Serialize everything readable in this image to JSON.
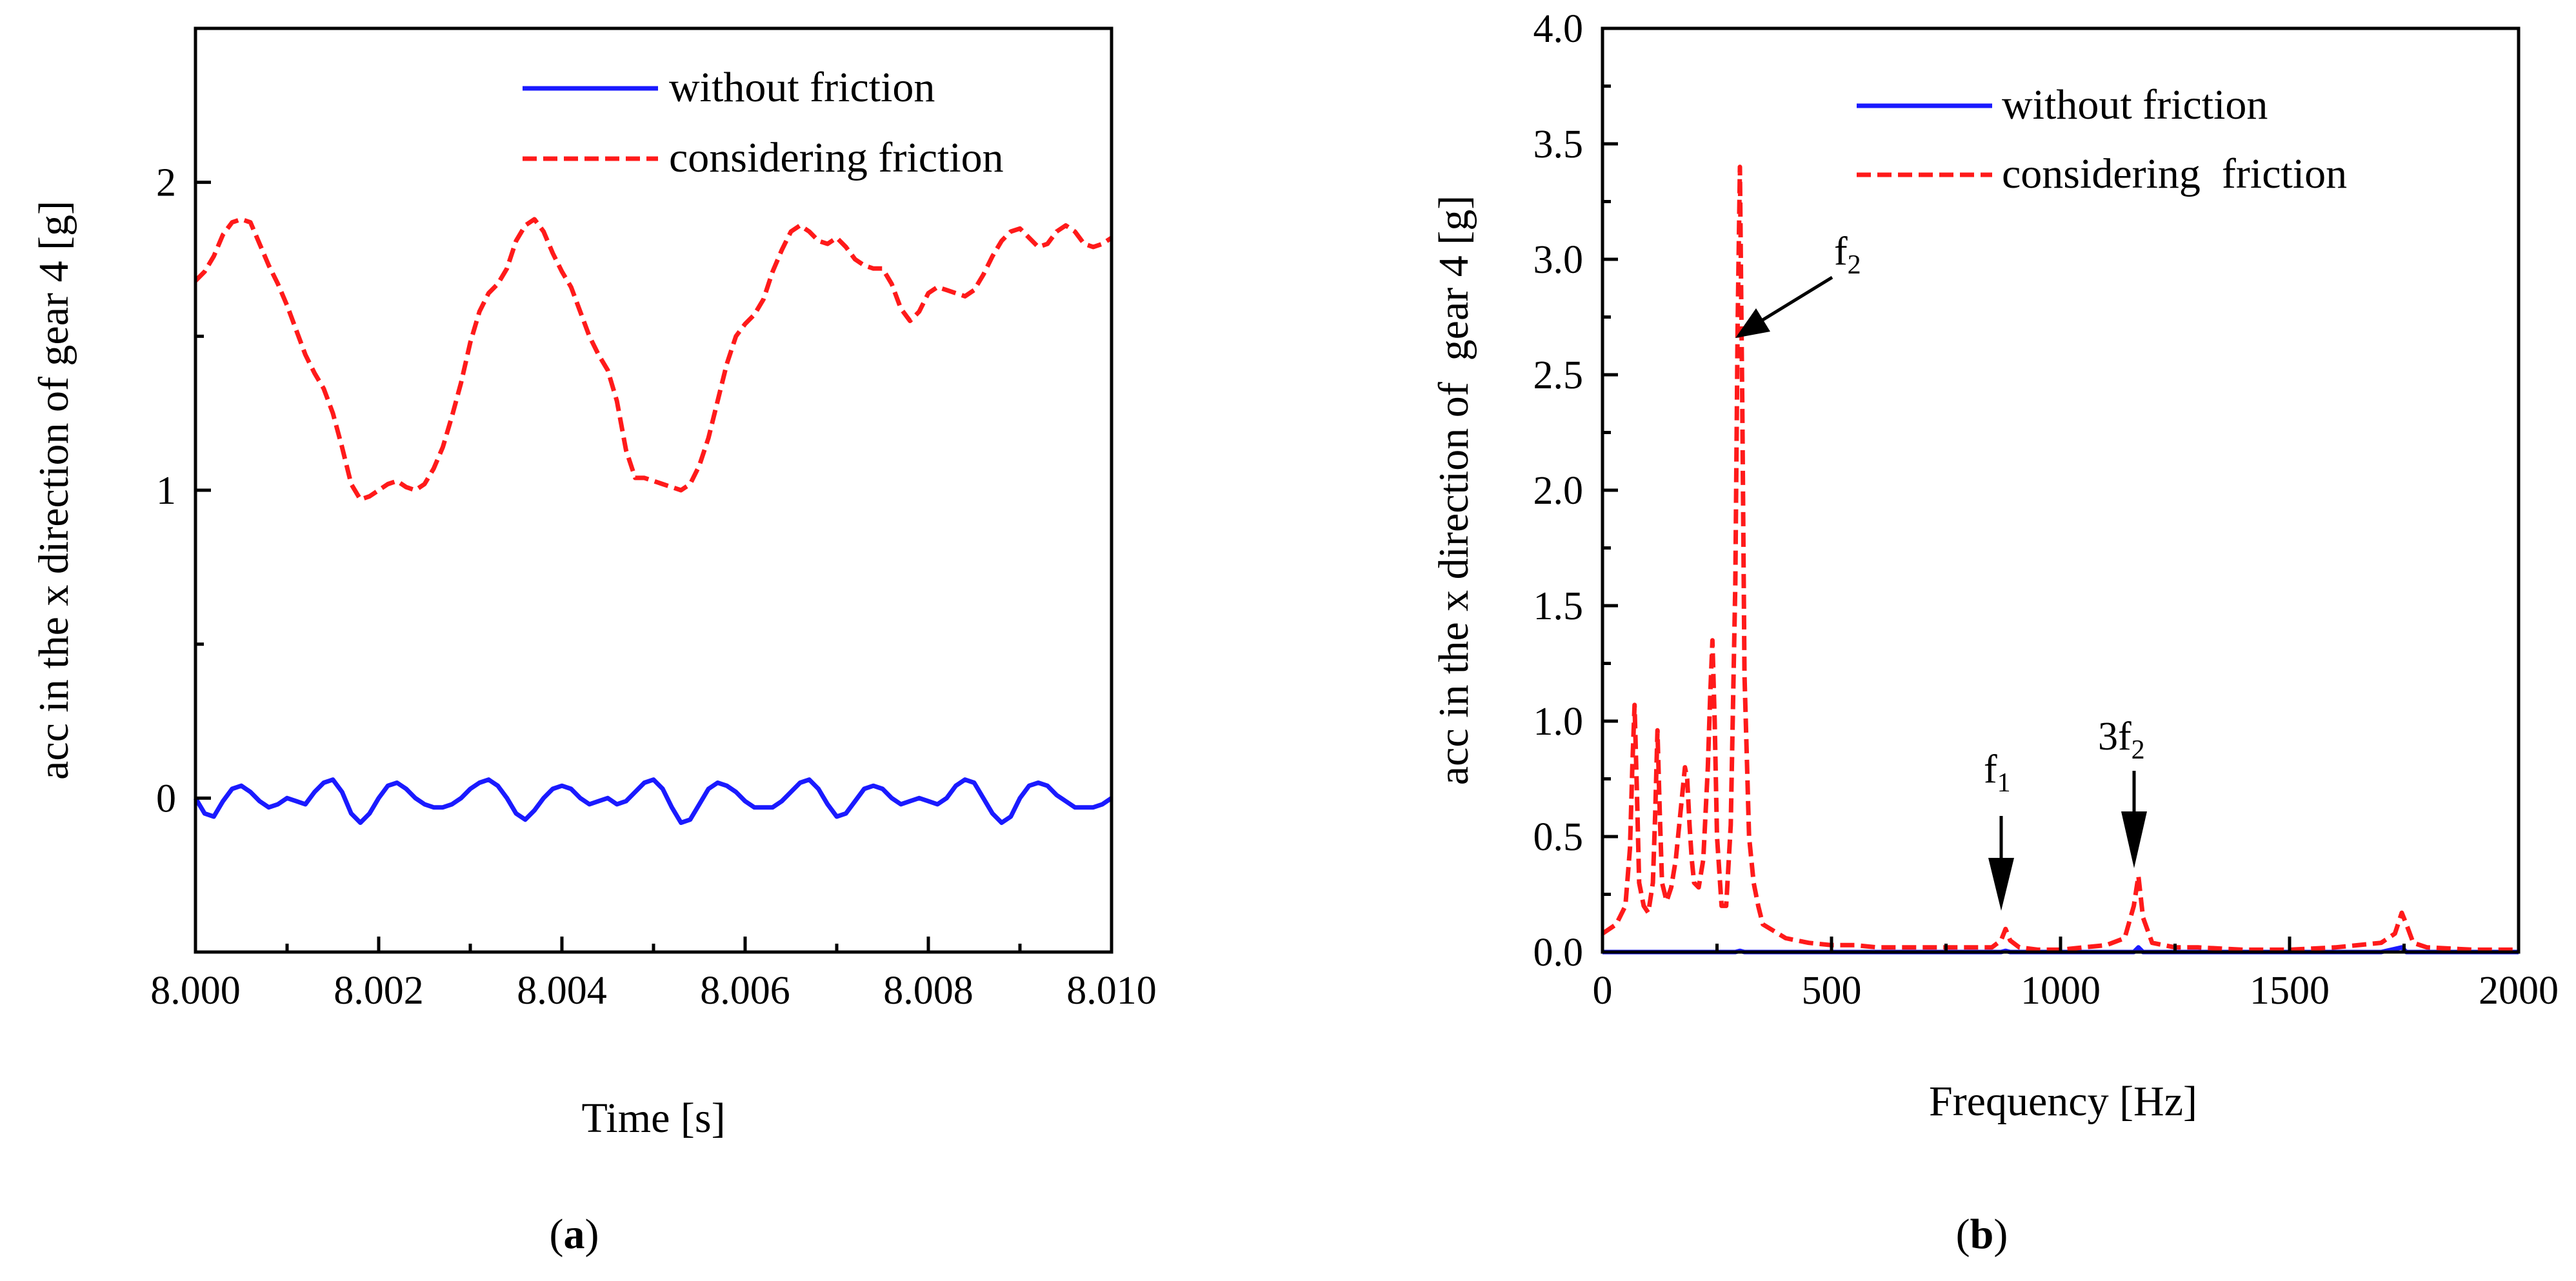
{
  "chart_data": [
    {
      "id": "a",
      "type": "line",
      "panel_label": "a",
      "xlabel": "Time [s]",
      "ylabel": "acc in the x direction of gear 4 [g]",
      "xlim": [
        8.0,
        8.01
      ],
      "ylim": [
        -0.5,
        2.5
      ],
      "xticks": [
        8.0,
        8.002,
        8.004,
        8.006,
        8.008,
        8.01
      ],
      "xtick_labels": [
        "8.000",
        "8.002",
        "8.004",
        "8.006",
        "8.008",
        "8.010"
      ],
      "yticks": [
        0,
        1,
        2
      ],
      "ytick_labels": [
        "0",
        "1",
        "2"
      ],
      "legend_position": "top-right",
      "series": [
        {
          "name": "without friction",
          "color": "#1a1aff",
          "style": "solid",
          "x": [
            8.0,
            8.0001,
            8.0002,
            8.0003,
            8.0004,
            8.0005,
            8.0006,
            8.0007,
            8.0008,
            8.0009,
            8.001,
            8.0011,
            8.0012,
            8.0013,
            8.0014,
            8.0015,
            8.0016,
            8.0017,
            8.0018,
            8.0019,
            8.002,
            8.0021,
            8.0022,
            8.0023,
            8.0024,
            8.0025,
            8.0026,
            8.0027,
            8.0028,
            8.0029,
            8.003,
            8.0031,
            8.0032,
            8.0033,
            8.0034,
            8.0035,
            8.0036,
            8.0037,
            8.0038,
            8.0039,
            8.004,
            8.0041,
            8.0042,
            8.0043,
            8.0044,
            8.0045,
            8.0046,
            8.0047,
            8.0048,
            8.0049,
            8.005,
            8.0051,
            8.0052,
            8.0053,
            8.0054,
            8.0055,
            8.0056,
            8.0057,
            8.0058,
            8.0059,
            8.006,
            8.0061,
            8.0062,
            8.0063,
            8.0064,
            8.0065,
            8.0066,
            8.0067,
            8.0068,
            8.0069,
            8.007,
            8.0071,
            8.0072,
            8.0073,
            8.0074,
            8.0075,
            8.0076,
            8.0077,
            8.0078,
            8.0079,
            8.008,
            8.0081,
            8.0082,
            8.0083,
            8.0084,
            8.0085,
            8.0086,
            8.0087,
            8.0088,
            8.0089,
            8.009,
            8.0091,
            8.0092,
            8.0093,
            8.0094,
            8.0095,
            8.0096,
            8.0097,
            8.0098,
            8.0099,
            8.01
          ],
          "y": [
            0.0,
            -0.05,
            -0.06,
            -0.01,
            0.03,
            0.04,
            0.02,
            -0.01,
            -0.03,
            -0.02,
            0.0,
            -0.01,
            -0.02,
            0.02,
            0.05,
            0.06,
            0.02,
            -0.05,
            -0.08,
            -0.05,
            0.0,
            0.04,
            0.05,
            0.03,
            0.0,
            -0.02,
            -0.03,
            -0.03,
            -0.02,
            0.0,
            0.03,
            0.05,
            0.06,
            0.04,
            0.0,
            -0.05,
            -0.07,
            -0.04,
            0.0,
            0.03,
            0.04,
            0.03,
            0.0,
            -0.02,
            -0.01,
            0.0,
            -0.02,
            -0.01,
            0.02,
            0.05,
            0.06,
            0.03,
            -0.03,
            -0.08,
            -0.07,
            -0.02,
            0.03,
            0.05,
            0.04,
            0.02,
            -0.01,
            -0.03,
            -0.03,
            -0.03,
            -0.01,
            0.02,
            0.05,
            0.06,
            0.03,
            -0.02,
            -0.06,
            -0.05,
            -0.01,
            0.03,
            0.04,
            0.03,
            0.0,
            -0.02,
            -0.01,
            0.0,
            -0.01,
            -0.02,
            0.0,
            0.04,
            0.06,
            0.05,
            0.0,
            -0.05,
            -0.08,
            -0.06,
            0.0,
            0.04,
            0.05,
            0.04,
            0.01,
            -0.01,
            -0.03,
            -0.03,
            -0.03,
            -0.02,
            0.0
          ]
        },
        {
          "name": "considering friction",
          "color": "#ff1a1a",
          "style": "dashed",
          "x": [
            8.0,
            8.0001,
            8.0002,
            8.0003,
            8.0004,
            8.0005,
            8.0006,
            8.0007,
            8.0008,
            8.0009,
            8.001,
            8.0011,
            8.0012,
            8.0013,
            8.0014,
            8.0015,
            8.0016,
            8.0017,
            8.0018,
            8.0019,
            8.002,
            8.0021,
            8.0022,
            8.0023,
            8.0024,
            8.0025,
            8.0026,
            8.0027,
            8.0028,
            8.0029,
            8.003,
            8.0031,
            8.0032,
            8.0033,
            8.0034,
            8.0035,
            8.0036,
            8.0037,
            8.0038,
            8.0039,
            8.004,
            8.0041,
            8.0042,
            8.0043,
            8.0044,
            8.0045,
            8.0046,
            8.0047,
            8.0048,
            8.0049,
            8.005,
            8.0051,
            8.0052,
            8.0053,
            8.0054,
            8.0055,
            8.0056,
            8.0057,
            8.0058,
            8.0059,
            8.006,
            8.0061,
            8.0062,
            8.0063,
            8.0064,
            8.0065,
            8.0066,
            8.0067,
            8.0068,
            8.0069,
            8.007,
            8.0071,
            8.0072,
            8.0073,
            8.0074,
            8.0075,
            8.0076,
            8.0077,
            8.0078,
            8.0079,
            8.008,
            8.0081,
            8.0082,
            8.0083,
            8.0084,
            8.0085,
            8.0086,
            8.0087,
            8.0088,
            8.0089,
            8.009,
            8.0091,
            8.0092,
            8.0093,
            8.0094,
            8.0095,
            8.0096,
            8.0097,
            8.0098,
            8.0099,
            8.01
          ],
          "y": [
            1.68,
            1.71,
            1.76,
            1.83,
            1.87,
            1.88,
            1.87,
            1.8,
            1.73,
            1.67,
            1.6,
            1.52,
            1.44,
            1.38,
            1.33,
            1.25,
            1.14,
            1.02,
            0.97,
            0.98,
            1.0,
            1.02,
            1.03,
            1.01,
            1.0,
            1.02,
            1.07,
            1.14,
            1.24,
            1.35,
            1.48,
            1.58,
            1.64,
            1.67,
            1.72,
            1.81,
            1.86,
            1.88,
            1.84,
            1.77,
            1.71,
            1.66,
            1.58,
            1.5,
            1.44,
            1.39,
            1.29,
            1.13,
            1.04,
            1.04,
            1.03,
            1.02,
            1.01,
            1.0,
            1.02,
            1.08,
            1.17,
            1.29,
            1.41,
            1.5,
            1.54,
            1.57,
            1.62,
            1.71,
            1.78,
            1.84,
            1.86,
            1.84,
            1.81,
            1.8,
            1.82,
            1.79,
            1.75,
            1.73,
            1.72,
            1.72,
            1.67,
            1.59,
            1.55,
            1.58,
            1.64,
            1.66,
            1.65,
            1.64,
            1.63,
            1.65,
            1.7,
            1.76,
            1.81,
            1.84,
            1.85,
            1.82,
            1.79,
            1.8,
            1.84,
            1.86,
            1.84,
            1.8,
            1.79,
            1.8,
            1.82
          ]
        }
      ]
    },
    {
      "id": "b",
      "type": "line",
      "panel_label": "b",
      "xlabel": "Frequency [Hz]",
      "ylabel": "acc in the x direction of  gear 4 [g]",
      "xlim": [
        0,
        2000
      ],
      "ylim": [
        0,
        4.0
      ],
      "xticks": [
        0,
        500,
        1000,
        1500,
        2000
      ],
      "xtick_labels": [
        "0",
        "500",
        "1000",
        "1500",
        "2000"
      ],
      "yticks": [
        0,
        0.5,
        1.0,
        1.5,
        2.0,
        2.5,
        3.0,
        3.5,
        4.0
      ],
      "ytick_labels": [
        "0.0",
        "0.5",
        "1.0",
        "1.5",
        "2.0",
        "2.5",
        "3.0",
        "3.5",
        "4.0"
      ],
      "legend_position": "top-right",
      "series": [
        {
          "name": "without friction",
          "color": "#1a1aff",
          "style": "solid",
          "x": [
            0,
            50,
            100,
            150,
            200,
            250,
            290,
            300,
            310,
            400,
            500,
            600,
            700,
            800,
            870,
            880,
            890,
            1000,
            1100,
            1160,
            1170,
            1180,
            1300,
            1500,
            1700,
            1745,
            1755,
            1800,
            2000
          ],
          "y": [
            0.0,
            0.0,
            0.0,
            0.0,
            0.0,
            0.0,
            0.0,
            0.005,
            0.0,
            0.0,
            0.0,
            0.0,
            0.0,
            0.0,
            0.0,
            0.005,
            0.0,
            0.0,
            0.0,
            0.0,
            0.02,
            0.0,
            0.0,
            0.0,
            0.0,
            0.02,
            0.0,
            0.0,
            0.0
          ]
        },
        {
          "name": "considering  friction",
          "color": "#ff1a1a",
          "style": "dashed",
          "x": [
            0,
            30,
            50,
            60,
            65,
            70,
            75,
            80,
            90,
            100,
            110,
            115,
            120,
            125,
            130,
            140,
            150,
            160,
            170,
            180,
            185,
            190,
            195,
            200,
            210,
            220,
            230,
            235,
            240,
            245,
            250,
            260,
            270,
            280,
            290,
            295,
            300,
            305,
            310,
            320,
            330,
            340,
            350,
            400,
            450,
            500,
            550,
            600,
            700,
            800,
            850,
            870,
            880,
            890,
            910,
            950,
            1000,
            1050,
            1100,
            1140,
            1160,
            1170,
            1180,
            1200,
            1250,
            1300,
            1400,
            1500,
            1600,
            1700,
            1730,
            1745,
            1755,
            1770,
            1800,
            1900,
            2000
          ],
          "y": [
            0.08,
            0.12,
            0.2,
            0.45,
            0.8,
            1.07,
            0.7,
            0.3,
            0.2,
            0.17,
            0.3,
            0.6,
            0.96,
            0.6,
            0.3,
            0.22,
            0.28,
            0.4,
            0.6,
            0.8,
            0.75,
            0.55,
            0.4,
            0.3,
            0.28,
            0.4,
            0.8,
            1.1,
            1.35,
            1.0,
            0.5,
            0.2,
            0.2,
            0.55,
            1.6,
            2.7,
            3.4,
            2.4,
            1.2,
            0.5,
            0.3,
            0.2,
            0.12,
            0.06,
            0.04,
            0.03,
            0.03,
            0.02,
            0.02,
            0.02,
            0.02,
            0.05,
            0.1,
            0.05,
            0.02,
            0.01,
            0.01,
            0.02,
            0.03,
            0.06,
            0.2,
            0.33,
            0.15,
            0.04,
            0.02,
            0.02,
            0.01,
            0.01,
            0.02,
            0.04,
            0.08,
            0.17,
            0.12,
            0.04,
            0.02,
            0.01,
            0.01
          ]
        }
      ],
      "annotations": [
        {
          "label": "f",
          "sub": "2",
          "x": 300,
          "y": 2.7
        },
        {
          "label": "f",
          "sub": "1",
          "x": 870,
          "y": 0.15
        },
        {
          "label": "3f",
          "sub": "2",
          "x": 1165,
          "y": 0.33
        }
      ]
    }
  ]
}
